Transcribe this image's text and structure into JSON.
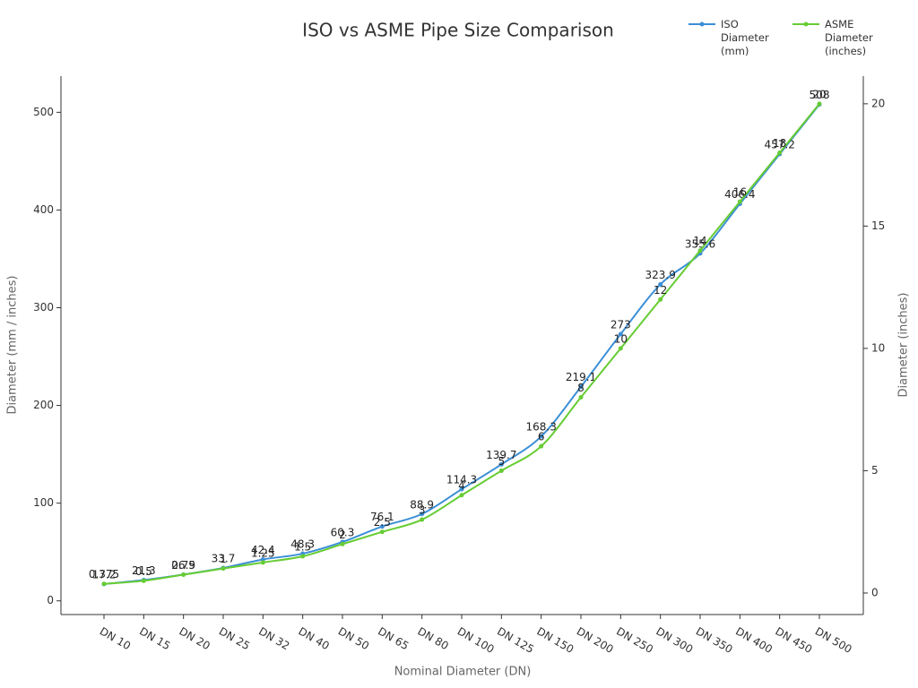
{
  "chart_data": {
    "type": "line",
    "title": "ISO vs ASME Pipe Size Comparison",
    "x_label": "Nominal Diameter (DN)",
    "y_label": "Diameter (mm / inches)",
    "y2_label": "Diameter (inches)",
    "categories": [
      "DN 10",
      "DN 15",
      "DN 20",
      "DN 25",
      "DN 32",
      "DN 40",
      "DN 50",
      "DN 65",
      "DN 80",
      "DN 100",
      "DN 125",
      "DN 150",
      "DN 200",
      "DN 250",
      "DN 300",
      "DN 350",
      "DN 400",
      "DN 450",
      "DN 500"
    ],
    "series": [
      {
        "name": "ISO Diameter (mm)",
        "color": "#3b8fd6",
        "values": [
          17.2,
          21.3,
          26.9,
          33.7,
          42.4,
          48.3,
          60.3,
          76.1,
          88.9,
          114.3,
          139.7,
          168.3,
          219.1,
          273,
          323.9,
          355.6,
          406.4,
          457.2,
          508
        ]
      },
      {
        "name": "ASME Diameter (inches)",
        "color": "#66cc33",
        "axis": "y2",
        "values": [
          0.375,
          0.5,
          0.75,
          1,
          1.25,
          1.5,
          2,
          2.5,
          3,
          4,
          5,
          6,
          8,
          10,
          12,
          14,
          16,
          18,
          20
        ]
      }
    ],
    "ylim": [
      -14,
      537
    ],
    "yticks": [
      0,
      100,
      200,
      300,
      400,
      500
    ],
    "y2lim": [
      -0.88,
      21.13
    ],
    "y2ticks": [
      0,
      5,
      10,
      15,
      20
    ],
    "grid": false,
    "legend": "upper right"
  }
}
